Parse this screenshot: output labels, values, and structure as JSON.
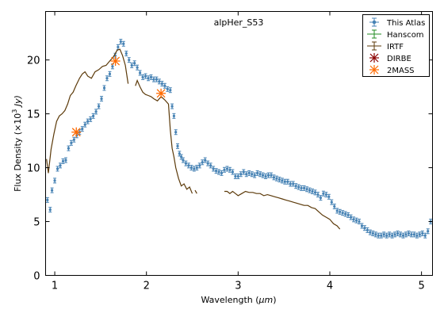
{
  "chart_data": {
    "type": "scatter",
    "title": "",
    "annotation": "alpHer_S53",
    "xlabel_main": "Wavelength (",
    "xlabel_unit": "μm",
    "ylabel_main": "Flux Density (×10",
    "ylabel_exp": "3",
    "ylabel_unit": " Jy)",
    "xlim": [
      0.9,
      5.12
    ],
    "ylim": [
      0,
      24.5
    ],
    "xticks": [
      1,
      2,
      3,
      4,
      5
    ],
    "yticks": [
      0,
      5,
      10,
      15,
      20
    ],
    "grid": false,
    "legend_position": "top-right",
    "colors": {
      "this_atlas": "#4682b4",
      "hanscom": "#228b22",
      "irtf": "#5c3a0a",
      "dirbe": "#8b0000",
      "twomass": "#ff6a00"
    },
    "legend": [
      {
        "key": "atlas",
        "label": "This Atlas"
      },
      {
        "key": "hanscom",
        "label": "Hanscom"
      },
      {
        "key": "irtf",
        "label": "IRTF"
      },
      {
        "key": "dirbe",
        "label": "DIRBE"
      },
      {
        "key": "twomass",
        "label": "2MASS"
      }
    ],
    "series": [
      {
        "name": "This Atlas",
        "style": "errorbar-points",
        "segments": [
          [
            [
              0.92,
              7.0
            ],
            [
              0.95,
              6.1
            ],
            [
              0.97,
              7.9
            ],
            [
              1.0,
              8.8
            ],
            [
              1.03,
              9.9
            ],
            [
              1.06,
              10.2
            ],
            [
              1.09,
              10.6
            ],
            [
              1.12,
              10.7
            ],
            [
              1.15,
              11.8
            ],
            [
              1.18,
              12.3
            ],
            [
              1.21,
              12.6
            ],
            [
              1.24,
              13.0
            ],
            [
              1.27,
              13.3
            ],
            [
              1.3,
              13.6
            ],
            [
              1.33,
              14.0
            ],
            [
              1.36,
              14.3
            ],
            [
              1.39,
              14.5
            ],
            [
              1.42,
              14.8
            ],
            [
              1.45,
              15.2
            ],
            [
              1.48,
              15.7
            ],
            [
              1.51,
              16.4
            ],
            [
              1.54,
              17.4
            ],
            [
              1.57,
              18.3
            ],
            [
              1.6,
              18.7
            ],
            [
              1.63,
              19.4
            ],
            [
              1.66,
              20.4
            ],
            [
              1.69,
              21.2
            ],
            [
              1.72,
              21.7
            ],
            [
              1.75,
              21.5
            ],
            [
              1.78,
              20.6
            ],
            [
              1.81,
              20.0
            ],
            [
              1.84,
              19.5
            ],
            [
              1.87,
              19.7
            ],
            [
              1.9,
              19.3
            ],
            [
              1.93,
              18.8
            ],
            [
              1.96,
              18.4
            ],
            [
              1.99,
              18.5
            ],
            [
              2.02,
              18.3
            ],
            [
              2.05,
              18.4
            ],
            [
              2.08,
              18.2
            ],
            [
              2.11,
              18.2
            ],
            [
              2.14,
              18.0
            ],
            [
              2.17,
              17.8
            ],
            [
              2.2,
              17.6
            ],
            [
              2.23,
              17.3
            ],
            [
              2.26,
              17.2
            ],
            [
              2.28,
              15.7
            ],
            [
              2.3,
              14.8
            ],
            [
              2.32,
              13.3
            ],
            [
              2.34,
              12.0
            ],
            [
              2.36,
              11.3
            ],
            [
              2.38,
              11.0
            ],
            [
              2.4,
              10.7
            ],
            [
              2.43,
              10.4
            ],
            [
              2.46,
              10.2
            ],
            [
              2.49,
              10.0
            ],
            [
              2.52,
              9.9
            ],
            [
              2.55,
              10.0
            ],
            [
              2.58,
              10.2
            ],
            [
              2.61,
              10.5
            ],
            [
              2.64,
              10.7
            ],
            [
              2.67,
              10.4
            ],
            [
              2.7,
              10.2
            ],
            [
              2.73,
              9.9
            ],
            [
              2.76,
              9.7
            ],
            [
              2.79,
              9.6
            ],
            [
              2.82,
              9.5
            ],
            [
              2.85,
              9.8
            ],
            [
              2.88,
              9.9
            ],
            [
              2.91,
              9.8
            ],
            [
              2.94,
              9.6
            ],
            [
              2.97,
              9.2
            ],
            [
              3.0,
              9.2
            ],
            [
              3.03,
              9.4
            ],
            [
              3.06,
              9.6
            ],
            [
              3.09,
              9.4
            ],
            [
              3.12,
              9.5
            ],
            [
              3.15,
              9.4
            ],
            [
              3.18,
              9.3
            ],
            [
              3.21,
              9.5
            ],
            [
              3.24,
              9.4
            ],
            [
              3.27,
              9.3
            ],
            [
              3.3,
              9.2
            ],
            [
              3.33,
              9.3
            ],
            [
              3.36,
              9.3
            ],
            [
              3.39,
              9.1
            ],
            [
              3.42,
              9.0
            ],
            [
              3.45,
              8.9
            ],
            [
              3.48,
              8.8
            ],
            [
              3.51,
              8.7
            ],
            [
              3.54,
              8.7
            ],
            [
              3.57,
              8.5
            ],
            [
              3.6,
              8.5
            ],
            [
              3.63,
              8.3
            ],
            [
              3.66,
              8.2
            ],
            [
              3.69,
              8.1
            ],
            [
              3.72,
              8.1
            ],
            [
              3.75,
              8.0
            ],
            [
              3.78,
              7.9
            ],
            [
              3.81,
              7.8
            ],
            [
              3.84,
              7.7
            ],
            [
              3.87,
              7.5
            ],
            [
              3.9,
              7.2
            ],
            [
              3.93,
              7.6
            ],
            [
              3.96,
              7.5
            ],
            [
              3.99,
              7.3
            ],
            [
              4.02,
              6.8
            ],
            [
              4.05,
              6.4
            ],
            [
              4.08,
              6.0
            ],
            [
              4.11,
              5.9
            ],
            [
              4.14,
              5.8
            ],
            [
              4.17,
              5.7
            ],
            [
              4.2,
              5.6
            ],
            [
              4.23,
              5.4
            ],
            [
              4.26,
              5.2
            ],
            [
              4.29,
              5.1
            ],
            [
              4.32,
              5.0
            ],
            [
              4.35,
              4.6
            ],
            [
              4.38,
              4.4
            ],
            [
              4.41,
              4.2
            ],
            [
              4.44,
              4.0
            ],
            [
              4.47,
              3.9
            ],
            [
              4.5,
              3.8
            ],
            [
              4.53,
              3.7
            ],
            [
              4.56,
              3.7
            ],
            [
              4.59,
              3.8
            ],
            [
              4.62,
              3.7
            ],
            [
              4.65,
              3.8
            ],
            [
              4.68,
              3.7
            ],
            [
              4.71,
              3.8
            ],
            [
              4.74,
              3.9
            ],
            [
              4.77,
              3.8
            ],
            [
              4.8,
              3.7
            ],
            [
              4.83,
              3.8
            ],
            [
              4.86,
              3.9
            ],
            [
              4.89,
              3.8
            ],
            [
              4.92,
              3.8
            ],
            [
              4.95,
              3.7
            ],
            [
              4.98,
              3.8
            ],
            [
              5.01,
              3.9
            ],
            [
              5.04,
              3.7
            ],
            [
              5.07,
              4.1
            ],
            [
              5.1,
              5.0
            ]
          ]
        ]
      },
      {
        "name": "IRTF",
        "style": "line",
        "segments": [
          [
            [
              0.91,
              10.8
            ],
            [
              0.93,
              9.5
            ],
            [
              0.96,
              11.7
            ],
            [
              0.99,
              13.1
            ],
            [
              1.02,
              14.3
            ],
            [
              1.05,
              14.8
            ],
            [
              1.08,
              15.0
            ],
            [
              1.11,
              15.3
            ],
            [
              1.14,
              15.9
            ],
            [
              1.17,
              16.7
            ],
            [
              1.2,
              17.0
            ],
            [
              1.23,
              17.6
            ],
            [
              1.27,
              18.3
            ],
            [
              1.3,
              18.7
            ],
            [
              1.33,
              18.9
            ],
            [
              1.36,
              18.5
            ],
            [
              1.4,
              18.3
            ],
            [
              1.44,
              18.9
            ],
            [
              1.48,
              19.1
            ],
            [
              1.52,
              19.4
            ],
            [
              1.56,
              19.5
            ],
            [
              1.6,
              19.9
            ],
            [
              1.64,
              20.3
            ],
            [
              1.68,
              20.9
            ],
            [
              1.71,
              21.0
            ],
            [
              1.74,
              20.4
            ],
            [
              1.77,
              19.5
            ],
            [
              1.8,
              17.8
            ]
          ],
          [
            [
              1.88,
              17.6
            ],
            [
              1.9,
              18.1
            ],
            [
              1.93,
              17.5
            ],
            [
              1.96,
              17.0
            ],
            [
              1.99,
              16.8
            ],
            [
              2.02,
              16.7
            ],
            [
              2.05,
              16.6
            ],
            [
              2.08,
              16.4
            ],
            [
              2.12,
              16.2
            ],
            [
              2.16,
              16.6
            ],
            [
              2.2,
              16.3
            ],
            [
              2.24,
              15.9
            ],
            [
              2.26,
              13.5
            ],
            [
              2.28,
              11.8
            ],
            [
              2.3,
              11.0
            ],
            [
              2.32,
              10.0
            ],
            [
              2.35,
              9.0
            ],
            [
              2.38,
              8.3
            ],
            [
              2.41,
              8.5
            ],
            [
              2.44,
              8.0
            ],
            [
              2.47,
              8.2
            ],
            [
              2.5,
              7.6
            ]
          ],
          [
            [
              2.53,
              7.9
            ],
            [
              2.55,
              7.6
            ]
          ],
          [
            [
              2.85,
              7.8
            ],
            [
              2.88,
              7.8
            ],
            [
              2.91,
              7.6
            ],
            [
              2.94,
              7.8
            ],
            [
              2.97,
              7.6
            ],
            [
              3.0,
              7.4
            ],
            [
              3.04,
              7.6
            ],
            [
              3.08,
              7.8
            ],
            [
              3.12,
              7.7
            ],
            [
              3.16,
              7.7
            ],
            [
              3.2,
              7.6
            ],
            [
              3.24,
              7.6
            ],
            [
              3.28,
              7.4
            ],
            [
              3.32,
              7.5
            ],
            [
              3.36,
              7.4
            ],
            [
              3.4,
              7.3
            ],
            [
              3.44,
              7.2
            ],
            [
              3.48,
              7.1
            ],
            [
              3.52,
              7.0
            ],
            [
              3.56,
              6.9
            ],
            [
              3.6,
              6.8
            ],
            [
              3.64,
              6.7
            ],
            [
              3.68,
              6.6
            ],
            [
              3.72,
              6.5
            ],
            [
              3.76,
              6.5
            ],
            [
              3.8,
              6.3
            ],
            [
              3.84,
              6.2
            ],
            [
              3.88,
              5.9
            ],
            [
              3.92,
              5.6
            ],
            [
              3.96,
              5.4
            ],
            [
              4.0,
              5.2
            ],
            [
              4.04,
              4.8
            ],
            [
              4.08,
              4.6
            ],
            [
              4.11,
              4.3
            ]
          ]
        ]
      },
      {
        "name": "2MASS",
        "style": "star-marker",
        "segments": [
          [
            [
              1.235,
              13.3
            ],
            [
              1.662,
              19.9
            ],
            [
              2.159,
              16.9
            ]
          ]
        ]
      }
    ]
  }
}
